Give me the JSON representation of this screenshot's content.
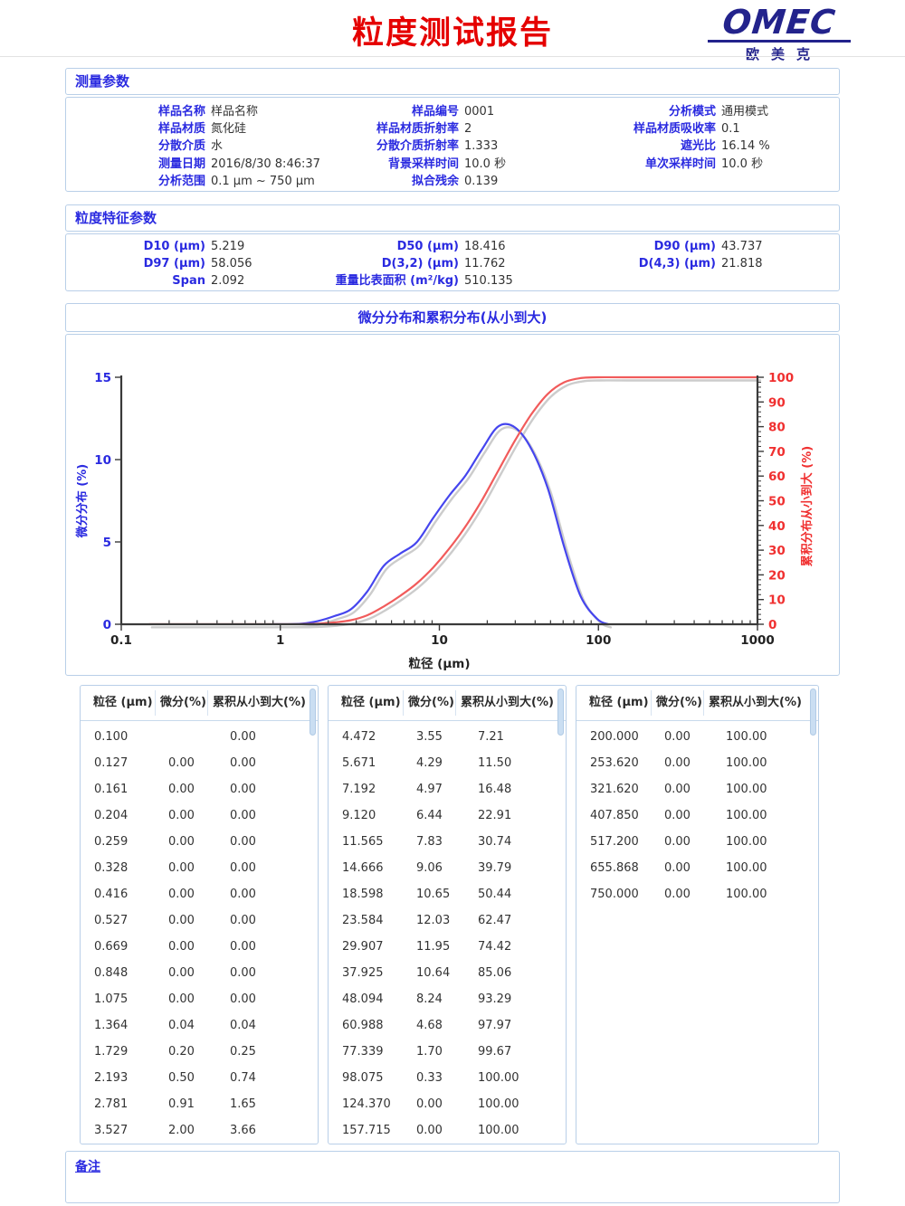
{
  "header": {
    "title": "粒度测试报告",
    "logo_text": "OMEC",
    "logo_subtext": "欧美克"
  },
  "measurement": {
    "title": "测量参数",
    "rows": [
      [
        {
          "label": "样品名称",
          "value": "样品名称"
        },
        {
          "label": "样品编号",
          "value": "0001"
        },
        {
          "label": "分析模式",
          "value": "通用模式"
        }
      ],
      [
        {
          "label": "样品材质",
          "value": "氮化硅"
        },
        {
          "label": "样品材质折射率",
          "value": "2"
        },
        {
          "label": "样品材质吸收率",
          "value": "0.1"
        }
      ],
      [
        {
          "label": "分散介质",
          "value": "水"
        },
        {
          "label": "分散介质折射率",
          "value": "1.333"
        },
        {
          "label": "遮光比",
          "value": "16.14 %"
        }
      ],
      [
        {
          "label": "测量日期",
          "value": "2016/8/30 8:46:37"
        },
        {
          "label": "背景采样时间",
          "value": "10.0 秒"
        },
        {
          "label": "单次采样时间",
          "value": "10.0 秒"
        }
      ],
      [
        {
          "label": "分析范围",
          "value": "0.1 μm ~ 750 μm"
        },
        {
          "label": "拟合残余",
          "value": "0.139"
        },
        {
          "label": "",
          "value": ""
        }
      ]
    ]
  },
  "characteristic": {
    "title": "粒度特征参数",
    "rows": [
      [
        {
          "label": "D10 (μm)",
          "value": "5.219"
        },
        {
          "label": "D50 (μm)",
          "value": "18.416"
        },
        {
          "label": "D90 (μm)",
          "value": "43.737"
        }
      ],
      [
        {
          "label": "D97 (μm)",
          "value": "58.056"
        },
        {
          "label": "D(3,2) (μm)",
          "value": "11.762"
        },
        {
          "label": "D(4,3) (μm)",
          "value": "21.818"
        }
      ],
      [
        {
          "label": "Span",
          "value": "2.092"
        },
        {
          "label": "重量比表面积 (m²/kg)",
          "value": "510.135"
        },
        {
          "label": "",
          "value": ""
        }
      ]
    ]
  },
  "chart_data": {
    "type": "line",
    "title": "微分分布和累积分布(从小到大)",
    "xlabel": "粒径 (μm)",
    "ylabel_left": "微分分布 (%)",
    "ylabel_right": "累积分布从小到大 (%)",
    "x_scale": "log",
    "xlim": [
      0.1,
      1000
    ],
    "x_ticks": [
      "0.1",
      "1",
      "10",
      "100",
      "1000"
    ],
    "ylim_left": [
      0,
      15
    ],
    "y_ticks_left": [
      0,
      5,
      10,
      15
    ],
    "ylim_right": [
      0,
      100
    ],
    "y_ticks_right": [
      0,
      10,
      20,
      30,
      40,
      50,
      60,
      70,
      80,
      90,
      100
    ],
    "grid": false,
    "legend": "none",
    "series": [
      {
        "name": "微分分布",
        "axis": "left",
        "color": "#4545ee",
        "x": [
          0.9,
          1.075,
          1.364,
          1.729,
          2.193,
          2.781,
          3.527,
          4.472,
          5.671,
          7.192,
          9.12,
          11.565,
          14.666,
          18.598,
          23.584,
          29.907,
          37.925,
          48.094,
          60.988,
          77.339,
          98.075,
          115.0
        ],
        "y": [
          0,
          0,
          0.04,
          0.2,
          0.5,
          0.91,
          2.0,
          3.55,
          4.29,
          4.97,
          6.44,
          7.83,
          9.06,
          10.65,
          12.03,
          11.95,
          10.64,
          8.24,
          4.68,
          1.7,
          0.33,
          0
        ]
      },
      {
        "name": "累积分布从小到大",
        "axis": "right",
        "color": "#f15b5b",
        "x": [
          0.15,
          1.075,
          1.364,
          1.729,
          2.193,
          2.781,
          3.527,
          4.472,
          5.671,
          7.192,
          9.12,
          11.565,
          14.666,
          18.598,
          23.584,
          29.907,
          37.925,
          48.094,
          60.988,
          77.339,
          98.075,
          157.715,
          1000
        ],
        "y": [
          0,
          0,
          0.04,
          0.25,
          0.74,
          1.65,
          3.66,
          7.21,
          11.5,
          16.48,
          22.91,
          30.74,
          39.79,
          50.44,
          62.47,
          74.42,
          85.06,
          93.29,
          97.97,
          99.67,
          100,
          100,
          100
        ]
      }
    ]
  },
  "tables": {
    "headers": [
      "粒径 (μm)",
      "微分(%)",
      "累积从小到大(%)"
    ],
    "table1": [
      [
        "0.100",
        "",
        "0.00"
      ],
      [
        "0.127",
        "0.00",
        "0.00"
      ],
      [
        "0.161",
        "0.00",
        "0.00"
      ],
      [
        "0.204",
        "0.00",
        "0.00"
      ],
      [
        "0.259",
        "0.00",
        "0.00"
      ],
      [
        "0.328",
        "0.00",
        "0.00"
      ],
      [
        "0.416",
        "0.00",
        "0.00"
      ],
      [
        "0.527",
        "0.00",
        "0.00"
      ],
      [
        "0.669",
        "0.00",
        "0.00"
      ],
      [
        "0.848",
        "0.00",
        "0.00"
      ],
      [
        "1.075",
        "0.00",
        "0.00"
      ],
      [
        "1.364",
        "0.04",
        "0.04"
      ],
      [
        "1.729",
        "0.20",
        "0.25"
      ],
      [
        "2.193",
        "0.50",
        "0.74"
      ],
      [
        "2.781",
        "0.91",
        "1.65"
      ],
      [
        "3.527",
        "2.00",
        "3.66"
      ]
    ],
    "table2": [
      [
        "4.472",
        "3.55",
        "7.21"
      ],
      [
        "5.671",
        "4.29",
        "11.50"
      ],
      [
        "7.192",
        "4.97",
        "16.48"
      ],
      [
        "9.120",
        "6.44",
        "22.91"
      ],
      [
        "11.565",
        "7.83",
        "30.74"
      ],
      [
        "14.666",
        "9.06",
        "39.79"
      ],
      [
        "18.598",
        "10.65",
        "50.44"
      ],
      [
        "23.584",
        "12.03",
        "62.47"
      ],
      [
        "29.907",
        "11.95",
        "74.42"
      ],
      [
        "37.925",
        "10.64",
        "85.06"
      ],
      [
        "48.094",
        "8.24",
        "93.29"
      ],
      [
        "60.988",
        "4.68",
        "97.97"
      ],
      [
        "77.339",
        "1.70",
        "99.67"
      ],
      [
        "98.075",
        "0.33",
        "100.00"
      ],
      [
        "124.370",
        "0.00",
        "100.00"
      ],
      [
        "157.715",
        "0.00",
        "100.00"
      ]
    ],
    "table3": [
      [
        "200.000",
        "0.00",
        "100.00"
      ],
      [
        "253.620",
        "0.00",
        "100.00"
      ],
      [
        "321.620",
        "0.00",
        "100.00"
      ],
      [
        "407.850",
        "0.00",
        "100.00"
      ],
      [
        "517.200",
        "0.00",
        "100.00"
      ],
      [
        "655.868",
        "0.00",
        "100.00"
      ],
      [
        "750.000",
        "0.00",
        "100.00"
      ]
    ]
  },
  "remark": {
    "title": "备注"
  },
  "colors": {
    "accent_blue": "#2a2ae0",
    "title_red": "#e50000",
    "logo_navy": "#23238c",
    "curve_blue": "#4545ee",
    "curve_red": "#f15b5b",
    "curve_shadow": "#cccccc",
    "axis": "#3a3a3a",
    "border_blue": "#b9cfe8"
  }
}
